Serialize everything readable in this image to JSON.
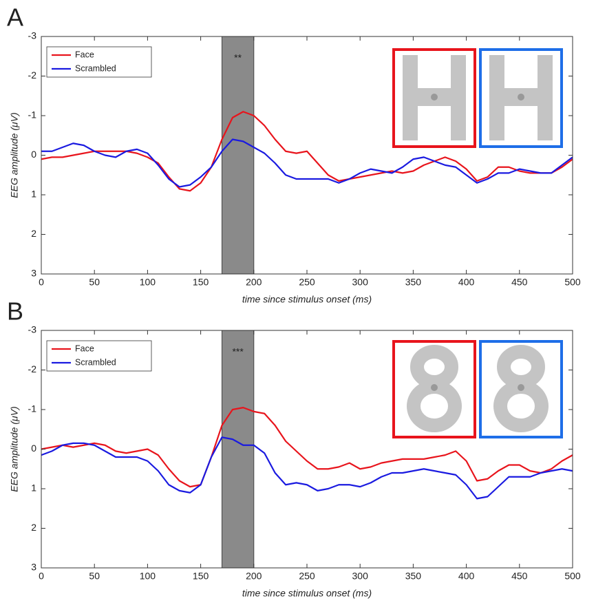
{
  "chart_data": [
    {
      "type": "line",
      "panel_label": "A",
      "xlabel": "time since stimulus onset (ms)",
      "ylabel": "EEG amplitude (μV)",
      "x": [
        0,
        10,
        20,
        30,
        40,
        50,
        60,
        70,
        80,
        90,
        100,
        110,
        120,
        130,
        140,
        150,
        160,
        170,
        180,
        190,
        200,
        210,
        220,
        230,
        240,
        250,
        260,
        270,
        280,
        290,
        300,
        310,
        320,
        330,
        340,
        350,
        360,
        370,
        380,
        390,
        400,
        410,
        420,
        430,
        440,
        450,
        460,
        470,
        480,
        490,
        500
      ],
      "series": [
        {
          "name": "Face",
          "color": "#e8141c",
          "values": [
            0.1,
            0.05,
            0.05,
            0,
            -0.05,
            -0.1,
            -0.1,
            -0.1,
            -0.1,
            -0.05,
            0.05,
            0.2,
            0.55,
            0.85,
            0.9,
            0.7,
            0.3,
            -0.4,
            -0.95,
            -1.1,
            -1.0,
            -0.75,
            -0.4,
            -0.1,
            -0.05,
            -0.1,
            0.2,
            0.5,
            0.65,
            0.6,
            0.55,
            0.5,
            0.45,
            0.4,
            0.45,
            0.4,
            0.25,
            0.15,
            0.05,
            0.15,
            0.35,
            0.65,
            0.55,
            0.3,
            0.3,
            0.4,
            0.45,
            0.45,
            0.45,
            0.3,
            0.1
          ]
        },
        {
          "name": "Scrambled",
          "color": "#1a1ae0",
          "values": [
            -0.1,
            -0.1,
            -0.2,
            -0.3,
            -0.25,
            -0.1,
            0,
            0.05,
            -0.1,
            -0.15,
            -0.05,
            0.25,
            0.6,
            0.8,
            0.75,
            0.55,
            0.3,
            -0.1,
            -0.4,
            -0.35,
            -0.2,
            -0.05,
            0.2,
            0.5,
            0.6,
            0.6,
            0.6,
            0.6,
            0.7,
            0.6,
            0.45,
            0.35,
            0.4,
            0.45,
            0.3,
            0.1,
            0.05,
            0.15,
            0.25,
            0.3,
            0.5,
            0.7,
            0.6,
            0.45,
            0.45,
            0.35,
            0.4,
            0.45,
            0.45,
            0.25,
            0.05
          ]
        }
      ],
      "highlight": {
        "range": [
          170,
          200
        ],
        "label": "**"
      },
      "xlim": [
        0,
        500
      ],
      "xticks": [
        0,
        50,
        100,
        150,
        200,
        250,
        300,
        350,
        400,
        450,
        500
      ],
      "ylim": [
        -3,
        3
      ],
      "yticks": [
        -3,
        -2,
        -1,
        0,
        1,
        2,
        3
      ],
      "y_reversed": true,
      "legend": "northwest"
    },
    {
      "type": "line",
      "panel_label": "B",
      "xlabel": "time since stimulus onset (ms)",
      "ylabel": "EEG amplitude (μV)",
      "x": [
        0,
        10,
        20,
        30,
        40,
        50,
        60,
        70,
        80,
        90,
        100,
        110,
        120,
        130,
        140,
        150,
        160,
        170,
        180,
        190,
        200,
        210,
        220,
        230,
        240,
        250,
        260,
        270,
        280,
        290,
        300,
        310,
        320,
        330,
        340,
        350,
        360,
        370,
        380,
        390,
        400,
        410,
        420,
        430,
        440,
        450,
        460,
        470,
        480,
        490,
        500
      ],
      "series": [
        {
          "name": "Face",
          "color": "#e8141c",
          "values": [
            0,
            -0.05,
            -0.1,
            -0.05,
            -0.1,
            -0.15,
            -0.1,
            0.05,
            0.1,
            0.05,
            0,
            0.15,
            0.5,
            0.8,
            0.95,
            0.9,
            0.2,
            -0.6,
            -1.0,
            -1.05,
            -0.95,
            -0.9,
            -0.6,
            -0.2,
            0.05,
            0.3,
            0.5,
            0.5,
            0.45,
            0.35,
            0.5,
            0.45,
            0.35,
            0.3,
            0.25,
            0.25,
            0.25,
            0.2,
            0.15,
            0.05,
            0.3,
            0.8,
            0.75,
            0.55,
            0.4,
            0.4,
            0.55,
            0.6,
            0.5,
            0.3,
            0.15
          ]
        },
        {
          "name": "Scrambled",
          "color": "#1a1ae0",
          "values": [
            0.15,
            0.05,
            -0.1,
            -0.15,
            -0.15,
            -0.1,
            0.05,
            0.2,
            0.2,
            0.2,
            0.3,
            0.55,
            0.9,
            1.05,
            1.1,
            0.9,
            0.2,
            -0.3,
            -0.25,
            -0.1,
            -0.1,
            0.1,
            0.6,
            0.9,
            0.85,
            0.9,
            1.05,
            1.0,
            0.9,
            0.9,
            0.95,
            0.85,
            0.7,
            0.6,
            0.6,
            0.55,
            0.5,
            0.55,
            0.6,
            0.65,
            0.9,
            1.25,
            1.2,
            0.95,
            0.7,
            0.7,
            0.7,
            0.6,
            0.55,
            0.5,
            0.55
          ]
        }
      ],
      "highlight": {
        "range": [
          170,
          200
        ],
        "label": "***"
      },
      "xlim": [
        0,
        500
      ],
      "xticks": [
        0,
        50,
        100,
        150,
        200,
        250,
        300,
        350,
        400,
        450,
        500
      ],
      "ylim": [
        -3,
        3
      ],
      "yticks": [
        -3,
        -2,
        -1,
        0,
        1,
        2,
        3
      ],
      "y_reversed": true,
      "legend": "northwest"
    }
  ]
}
